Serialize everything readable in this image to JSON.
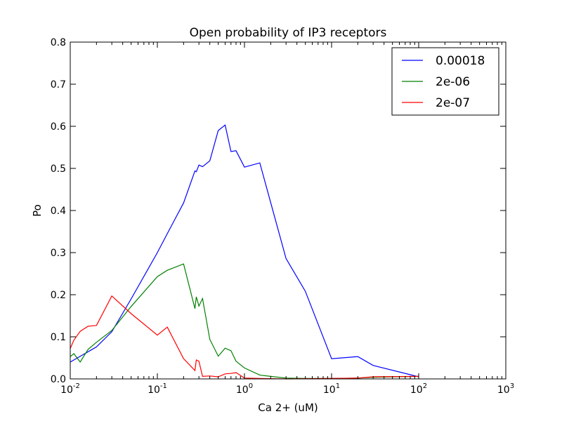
{
  "chart_data": {
    "type": "line",
    "title": "Open probability of IP3 receptors",
    "xlabel": "Ca 2+ (uM)",
    "ylabel": "Po",
    "xscale": "log",
    "xlim": [
      0.01,
      1000
    ],
    "ylim": [
      0.0,
      0.8
    ],
    "xticks": [
      {
        "value": 0.01,
        "base": "10",
        "exp": "-2"
      },
      {
        "value": 0.1,
        "base": "10",
        "exp": "-1"
      },
      {
        "value": 1,
        "base": "10",
        "exp": "0"
      },
      {
        "value": 10,
        "base": "10",
        "exp": "1"
      },
      {
        "value": 100,
        "base": "10",
        "exp": "2"
      },
      {
        "value": 1000,
        "base": "10",
        "exp": "3"
      }
    ],
    "yticks": [
      {
        "value": 0.0,
        "label": "0.0"
      },
      {
        "value": 0.1,
        "label": "0.1"
      },
      {
        "value": 0.2,
        "label": "0.2"
      },
      {
        "value": 0.3,
        "label": "0.3"
      },
      {
        "value": 0.4,
        "label": "0.4"
      },
      {
        "value": 0.5,
        "label": "0.5"
      },
      {
        "value": 0.6,
        "label": "0.6"
      },
      {
        "value": 0.7,
        "label": "0.7"
      },
      {
        "value": 0.8,
        "label": "0.8"
      }
    ],
    "grid": false,
    "legend_position": "top-right",
    "series": [
      {
        "name": "0.00018",
        "color": "#0000ff",
        "points": [
          [
            0.01,
            0.04
          ],
          [
            0.02,
            0.076
          ],
          [
            0.03,
            0.112
          ],
          [
            0.05,
            0.19
          ],
          [
            0.1,
            0.3
          ],
          [
            0.13,
            0.345
          ],
          [
            0.2,
            0.418
          ],
          [
            0.27,
            0.494
          ],
          [
            0.28,
            0.492
          ],
          [
            0.3,
            0.508
          ],
          [
            0.33,
            0.504
          ],
          [
            0.4,
            0.518
          ],
          [
            0.5,
            0.59
          ],
          [
            0.6,
            0.603
          ],
          [
            0.7,
            0.54
          ],
          [
            0.8,
            0.542
          ],
          [
            1.0,
            0.503
          ],
          [
            1.5,
            0.513
          ],
          [
            3.0,
            0.286
          ],
          [
            5.0,
            0.208
          ],
          [
            10.0,
            0.048
          ],
          [
            20.0,
            0.053
          ],
          [
            30.0,
            0.032
          ],
          [
            100.0,
            0.005
          ]
        ]
      },
      {
        "name": "2e-06",
        "color": "#008000",
        "points": [
          [
            0.01,
            0.053
          ],
          [
            0.011,
            0.06
          ],
          [
            0.013,
            0.04
          ],
          [
            0.016,
            0.07
          ],
          [
            0.02,
            0.087
          ],
          [
            0.03,
            0.115
          ],
          [
            0.05,
            0.172
          ],
          [
            0.1,
            0.243
          ],
          [
            0.13,
            0.258
          ],
          [
            0.2,
            0.273
          ],
          [
            0.27,
            0.167
          ],
          [
            0.28,
            0.195
          ],
          [
            0.3,
            0.173
          ],
          [
            0.33,
            0.191
          ],
          [
            0.4,
            0.094
          ],
          [
            0.5,
            0.054
          ],
          [
            0.6,
            0.073
          ],
          [
            0.7,
            0.067
          ],
          [
            0.8,
            0.042
          ],
          [
            1.0,
            0.026
          ],
          [
            1.5,
            0.009
          ],
          [
            3.0,
            0.002
          ],
          [
            5.0,
            0.001
          ],
          [
            10.0,
            0.001
          ],
          [
            20.0,
            0.002
          ],
          [
            30.0,
            0.004
          ],
          [
            100.0,
            0.006
          ]
        ]
      },
      {
        "name": "2e-07",
        "color": "#ff0000",
        "points": [
          [
            0.01,
            0.072
          ],
          [
            0.011,
            0.092
          ],
          [
            0.013,
            0.113
          ],
          [
            0.016,
            0.125
          ],
          [
            0.02,
            0.127
          ],
          [
            0.03,
            0.197
          ],
          [
            0.05,
            0.155
          ],
          [
            0.1,
            0.104
          ],
          [
            0.13,
            0.123
          ],
          [
            0.2,
            0.048
          ],
          [
            0.27,
            0.02
          ],
          [
            0.28,
            0.045
          ],
          [
            0.3,
            0.042
          ],
          [
            0.33,
            0.006
          ],
          [
            0.4,
            0.007
          ],
          [
            0.5,
            0.005
          ],
          [
            0.6,
            0.012
          ],
          [
            0.7,
            0.013
          ],
          [
            0.8,
            0.015
          ],
          [
            1.0,
            0.002
          ],
          [
            1.5,
            0.001
          ],
          [
            3.0,
            0.0
          ],
          [
            10.0,
            0.001
          ],
          [
            20.0,
            0.002
          ],
          [
            30.0,
            0.005
          ],
          [
            100.0,
            0.006
          ]
        ]
      }
    ]
  }
}
